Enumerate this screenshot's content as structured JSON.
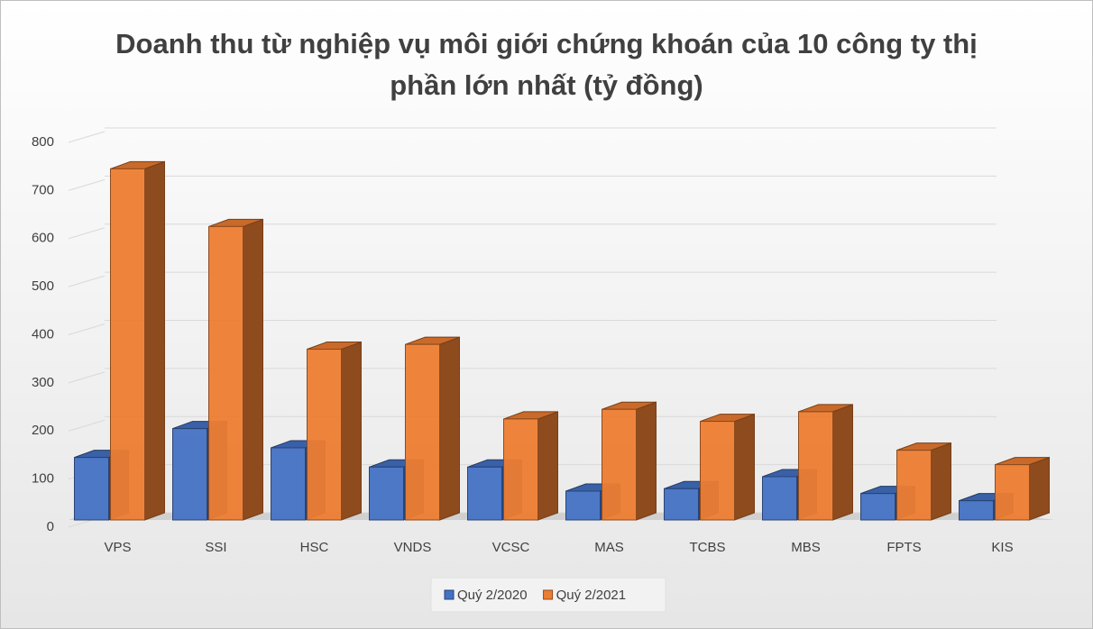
{
  "chart_data": {
    "type": "bar3d",
    "title": "Doanh thu từ nghiệp vụ môi giới chứng khoán của 10 công ty thị phần lớn nhất (tỷ đồng)",
    "categories": [
      "VPS",
      "SSI",
      "HSC",
      "VNDS",
      "VCSC",
      "MAS",
      "TCBS",
      "MBS",
      "FPTS",
      "KIS"
    ],
    "series": [
      {
        "name": "Quý 2/2020",
        "color": "#4472c4",
        "values": [
          130,
          190,
          150,
          110,
          110,
          60,
          65,
          90,
          55,
          40
        ]
      },
      {
        "name": "Quý 2/2021",
        "color": "#ed7d31",
        "values": [
          730,
          610,
          355,
          365,
          210,
          230,
          205,
          225,
          145,
          115
        ]
      }
    ],
    "ylim": [
      0,
      800
    ],
    "yticks": [
      0,
      100,
      200,
      300,
      400,
      500,
      600,
      700,
      800
    ],
    "grid": true,
    "legend": "bottom"
  }
}
